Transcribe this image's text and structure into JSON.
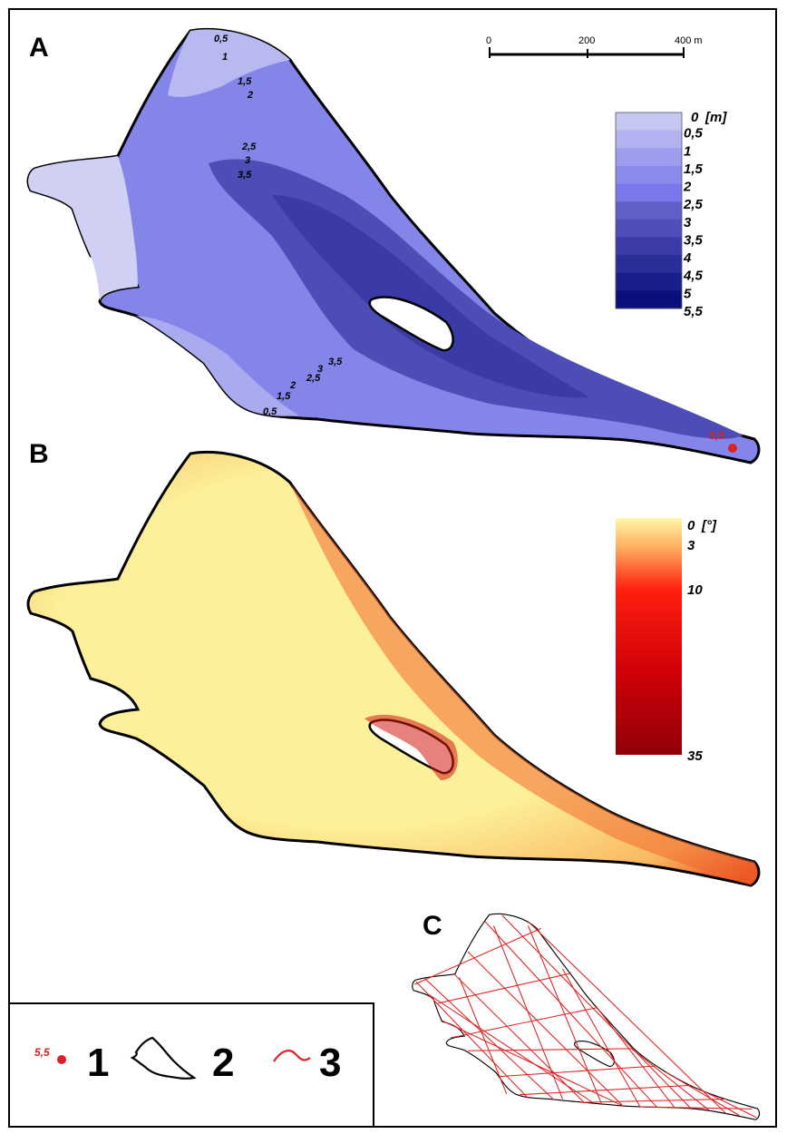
{
  "panels": {
    "a_label": "A",
    "b_label": "B",
    "c_label": "C"
  },
  "scale_bar": {
    "ticks": [
      "0",
      "200",
      "400 m"
    ]
  },
  "depth_legend": {
    "unit": "[m]",
    "labels": [
      "0",
      "0,5",
      "1",
      "1,5",
      "2",
      "2,5",
      "3",
      "3,5",
      "4",
      "4,5",
      "5",
      "5,5"
    ],
    "colors": [
      "#d6d6f4",
      "#c6c6f2",
      "#b2b2f0",
      "#9d9def",
      "#8a8aed",
      "#7878ea",
      "#5f60c8",
      "#4d4eb8",
      "#3b3ca8",
      "#2b2d98",
      "#1b1d8a",
      "#0c0e7c"
    ]
  },
  "slope_legend": {
    "unit": "[°]",
    "labels": [
      "0",
      "3",
      "10",
      "35"
    ]
  },
  "contour_labels": [
    "0,5",
    "1",
    "1,5",
    "2",
    "2,5",
    "3",
    "3,5"
  ],
  "max_depth_point": "5,5",
  "legend": {
    "point_sample": "5,5",
    "item1": "1",
    "item2": "2",
    "item3": "3"
  },
  "colors": {
    "depth_fill": "#7f80e6",
    "slope_fill": "#fbe98f",
    "shoreline": "#000000",
    "survey_lines": "#e02020",
    "max_point": "#e02020"
  }
}
